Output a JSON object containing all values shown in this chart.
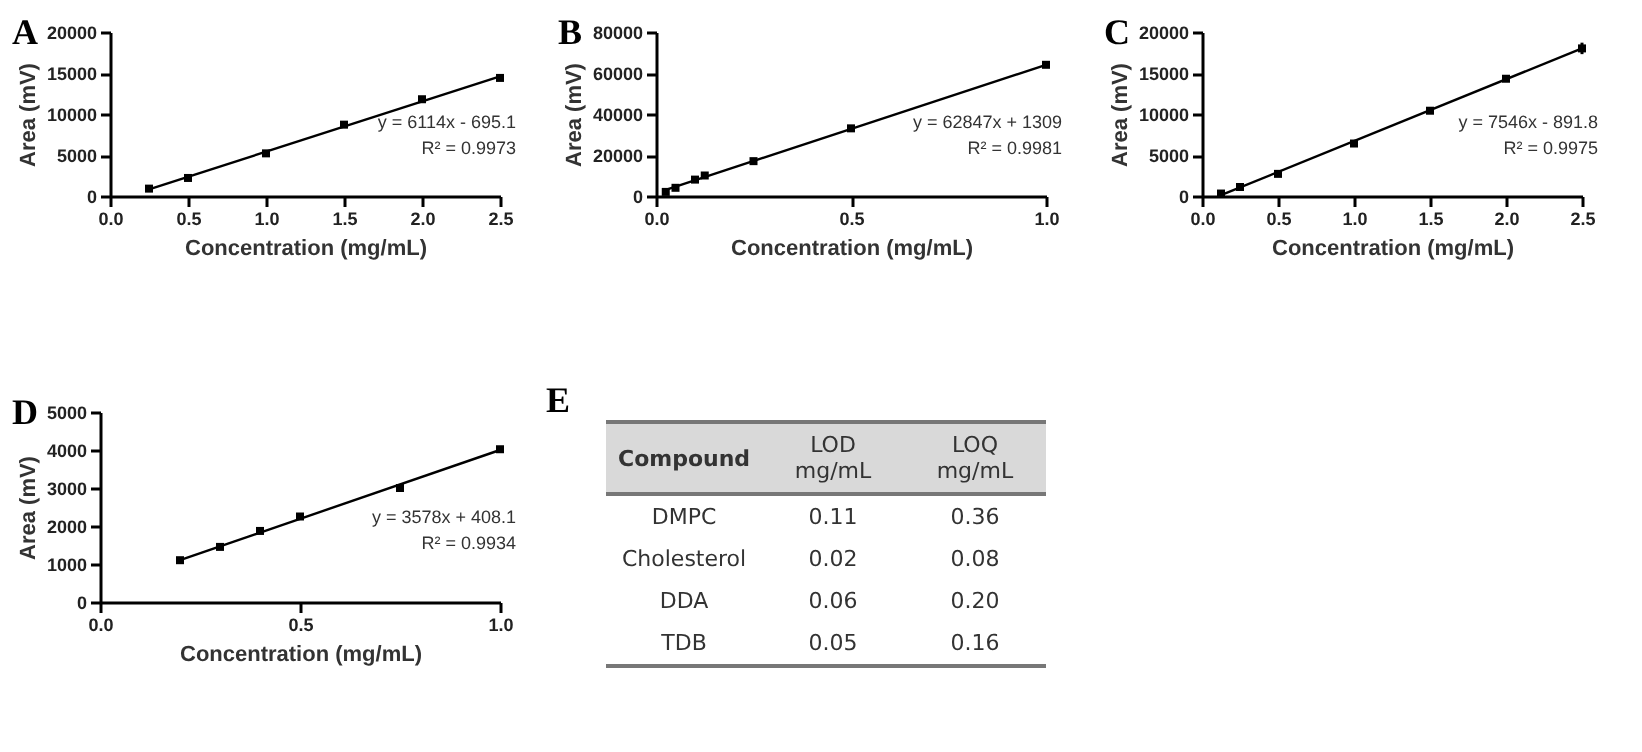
{
  "chart_data": [
    {
      "type": "scatter",
      "title": "A",
      "xlabel": "Concentration (mg/mL)",
      "ylabel": "Area (mV)",
      "xlim": [
        0,
        2.5
      ],
      "xticks": [
        {
          "value": 0,
          "label": "0.0"
        },
        0.5,
        {
          "value": 1,
          "label": "1.0"
        },
        1.5,
        {
          "value": 2,
          "label": "2.0"
        },
        2.5
      ],
      "ylim": [
        0,
        20000
      ],
      "yticks": [
        0,
        5000,
        10000,
        15000,
        20000
      ],
      "grid": false,
      "annotations": [
        "y = 6114x - 695.1",
        "R² = 0.9973"
      ],
      "series": [
        {
          "type": "scatter",
          "marker": "square",
          "color": "#000000",
          "x": [
            0.25,
            0.5,
            1.0,
            1.5,
            2.0,
            2.5
          ],
          "values": [
            900,
            2200,
            5200,
            8700,
            11800,
            14400
          ]
        },
        {
          "type": "line",
          "color": "#000000",
          "x": [
            0.25,
            2.5
          ],
          "values": [
            800,
            14600
          ]
        }
      ]
    },
    {
      "type": "scatter",
      "title": "B",
      "xlabel": "Concentration (mg/mL)",
      "ylabel": "Area (mV)",
      "xlim": [
        0,
        1
      ],
      "xticks": [
        {
          "value": 0,
          "label": "0.0"
        },
        0.5,
        {
          "value": 1,
          "label": "1.0"
        }
      ],
      "ylim": [
        0,
        80000
      ],
      "yticks": [
        0,
        20000,
        40000,
        60000,
        80000
      ],
      "grid": false,
      "annotations": [
        "y = 62847x + 1309",
        "R² = 0.9981"
      ],
      "series": [
        {
          "type": "scatter",
          "marker": "square",
          "color": "#000000",
          "x": [
            0.025,
            0.05,
            0.1,
            0.125,
            0.25,
            0.5,
            1.0
          ],
          "values": [
            2000,
            4000,
            8000,
            10000,
            17000,
            33000,
            64000
          ]
        },
        {
          "type": "line",
          "color": "#000000",
          "x": [
            0.025,
            1.0
          ],
          "values": [
            3000,
            64000
          ]
        }
      ]
    },
    {
      "type": "scatter",
      "title": "C",
      "xlabel": "Concentration (mg/mL)",
      "ylabel": "Area (mV)",
      "xlim": [
        0,
        2.5
      ],
      "xticks": [
        {
          "value": 0,
          "label": "0.0"
        },
        0.5,
        {
          "value": 1,
          "label": "1.0"
        },
        1.5,
        {
          "value": 2,
          "label": "2.0"
        },
        2.5
      ],
      "ylim": [
        0,
        20000
      ],
      "yticks": [
        0,
        5000,
        10000,
        15000,
        20000
      ],
      "grid": false,
      "annotations": [
        "y = 7546x - 891.8",
        "R² = 0.9975"
      ],
      "series": [
        {
          "type": "scatter",
          "marker": "square",
          "color": "#000000",
          "x": [
            0.125,
            0.25,
            0.5,
            1.0,
            1.5,
            2.0,
            2.5
          ],
          "values": [
            300,
            1100,
            2700,
            6400,
            10400,
            14300,
            18000
          ],
          "errors": [
            null,
            null,
            null,
            null,
            null,
            400,
            700
          ]
        },
        {
          "type": "line",
          "color": "#000000",
          "x": [
            0.125,
            2.5
          ],
          "values": [
            100,
            18000
          ]
        }
      ]
    },
    {
      "type": "scatter",
      "title": "D",
      "xlabel": "Concentration (mg/mL)",
      "ylabel": "Area (mV)",
      "xlim": [
        0,
        1
      ],
      "xticks": [
        {
          "value": 0,
          "label": "0.0"
        },
        0.5,
        {
          "value": 1,
          "label": "1.0"
        }
      ],
      "ylim": [
        0,
        5000
      ],
      "yticks": [
        0,
        1000,
        2000,
        3000,
        4000,
        5000
      ],
      "grid": false,
      "annotations": [
        "y = 3578x + 408.1",
        "R² = 0.9934"
      ],
      "series": [
        {
          "type": "scatter",
          "marker": "square",
          "color": "#000000",
          "x": [
            0.2,
            0.3,
            0.4,
            0.5,
            0.75,
            1.0
          ],
          "values": [
            1100,
            1450,
            1870,
            2250,
            3000,
            4020
          ]
        },
        {
          "type": "line",
          "color": "#000000",
          "x": [
            0.2,
            1.0
          ],
          "values": [
            1100,
            4000
          ]
        }
      ]
    },
    {
      "type": "other",
      "title": "E",
      "annotations": [
        "Compound",
        "LOD mg/mL",
        "LOQ mg/mL",
        "DMPC",
        "0.11",
        "0.36",
        "Cholesterol",
        "0.02",
        "0.08",
        "DDA",
        "0.06",
        "0.20",
        "TDB",
        "0.05",
        "0.16"
      ]
    }
  ]
}
